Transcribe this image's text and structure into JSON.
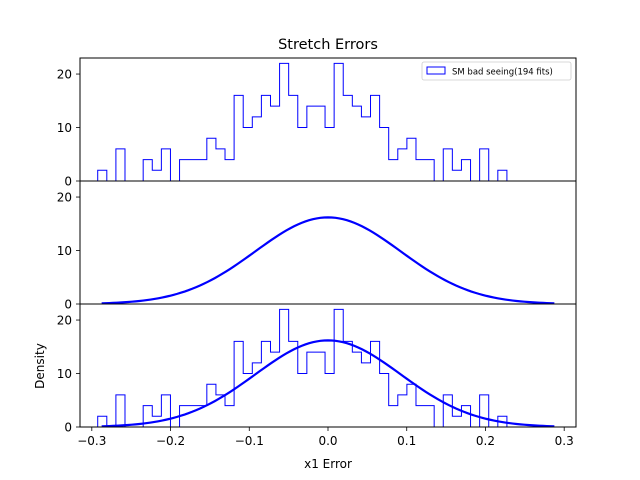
{
  "chart_data": {
    "type": "histogram",
    "title": "Stretch Errors",
    "xlabel": "x1 Error",
    "ylabel": "Density",
    "xlim": [
      -0.315,
      0.315
    ],
    "ylim": [
      0,
      23
    ],
    "xticks": [
      -0.3,
      -0.2,
      -0.1,
      0.0,
      0.1,
      0.2,
      0.3
    ],
    "xtick_labels": [
      "−0.3",
      "−0.2",
      "−0.1",
      "0.0",
      "0.1",
      "0.2",
      "0.3"
    ],
    "yticks": [
      0,
      10,
      20
    ],
    "legend": {
      "label": "SM bad seeing(194 fits)",
      "position": "top-right"
    },
    "color": "#0000ff",
    "bins": {
      "start": -0.2925,
      "width": 0.01155,
      "densities": [
        2,
        0,
        6,
        0,
        0,
        4,
        2,
        6,
        0,
        4,
        4,
        4,
        8,
        6,
        4,
        16,
        10,
        12,
        16,
        14,
        22,
        16,
        10,
        14,
        14,
        10,
        22,
        16,
        14,
        12,
        16,
        10,
        4,
        6,
        8,
        4,
        4,
        0,
        6,
        2,
        4,
        0,
        6,
        0,
        2
      ]
    },
    "gaussian": {
      "mean": 0.0,
      "sigma": 0.0925,
      "peak": 16.2,
      "x_range": [
        -0.2875,
        0.2875
      ]
    },
    "panels": [
      {
        "name": "histogram",
        "ylim": [
          0,
          23
        ],
        "show_hist": true,
        "show_curve": false,
        "show_legend": true
      },
      {
        "name": "gaussian-fit",
        "ylim": [
          0,
          23
        ],
        "show_hist": false,
        "show_curve": true,
        "show_legend": false
      },
      {
        "name": "overlay",
        "ylim": [
          0,
          23
        ],
        "show_hist": true,
        "show_curve": true,
        "show_legend": false
      }
    ]
  }
}
